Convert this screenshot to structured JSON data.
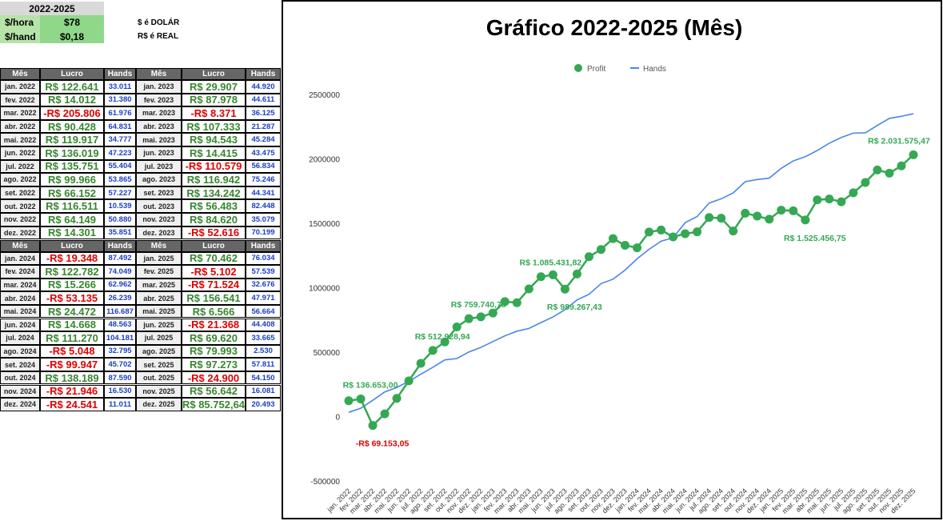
{
  "summary": {
    "title": "2022-2025",
    "rows": [
      [
        "$/hora",
        "$78"
      ],
      [
        "$/hand",
        "$0,18"
      ]
    ],
    "notes": [
      "$ é DOLÁR",
      "R$ é REAL"
    ]
  },
  "tables": [
    {
      "header": [
        "Mês",
        "Lucro",
        "Hands",
        "Mês",
        "Lucro",
        "Hands"
      ],
      "rows": [
        [
          "jan. 2022",
          "R$ 122.641",
          "33.011",
          "jan. 2023",
          "R$ 29.907",
          "44.920"
        ],
        [
          "fev. 2022",
          "R$ 14.012",
          "31.380",
          "fev. 2023",
          "R$ 87.978",
          "44.611"
        ],
        [
          "mar. 2022",
          "-R$ 205.806",
          "61.976",
          "mar. 2023",
          "-R$ 8.371",
          "36.125"
        ],
        [
          "abr. 2022",
          "R$ 90.428",
          "64.831",
          "abr. 2023",
          "R$ 107.333",
          "21.287"
        ],
        [
          "mai. 2022",
          "R$ 119.917",
          "34.777",
          "mai. 2023",
          "R$ 94.543",
          "45.284"
        ],
        [
          "jun. 2022",
          "R$ 136.019",
          "47.223",
          "jun. 2023",
          "R$ 14.415",
          "43.475"
        ],
        [
          "jul. 2022",
          "R$ 135.751",
          "55.404",
          "jul. 2023",
          "-R$ 110.579",
          "56.834"
        ],
        [
          "ago. 2022",
          "R$ 99.966",
          "53.865",
          "ago. 2023",
          "R$ 116.942",
          "75.246"
        ],
        [
          "set. 2022",
          "R$ 66.152",
          "57.227",
          "set. 2023",
          "R$ 134.242",
          "44.341"
        ],
        [
          "out. 2022",
          "R$ 116.511",
          "10.539",
          "out. 2023",
          "R$ 56.483",
          "82.448"
        ],
        [
          "nov. 2022",
          "R$ 64.149",
          "50.880",
          "nov. 2023",
          "R$ 84.620",
          "35.079"
        ],
        [
          "dez. 2022",
          "R$ 14.301",
          "35.851",
          "dez. 2023",
          "-R$ 52.616",
          "70.199"
        ]
      ]
    },
    {
      "header": [
        "Mês",
        "Lucro",
        "Hands",
        "Mês",
        "Lucro",
        "Hands"
      ],
      "rows": [
        [
          "jan. 2024",
          "-R$ 19.348",
          "87.492",
          "jan. 2025",
          "R$ 70.462",
          "76.034"
        ],
        [
          "fev. 2024",
          "R$ 122.782",
          "74.049",
          "fev. 2025",
          "-R$ 5.102",
          "57.539"
        ],
        [
          "mar. 2024",
          "R$ 15.266",
          "62.962",
          "mar. 2025",
          "-R$ 71.524",
          "32.676"
        ],
        [
          "abr. 2024",
          "-R$ 53.135",
          "26.239",
          "abr. 2025",
          "R$ 156.541",
          "47.971"
        ],
        [
          "mai. 2024",
          "R$ 24.472",
          "116.687",
          "mai. 2025",
          "R$ 6.566",
          "56.664"
        ],
        [
          "jun. 2024",
          "R$ 14.668",
          "48.563",
          "jun. 2025",
          "-R$ 21.368",
          "44.408"
        ],
        [
          "jul. 2024",
          "R$ 111.270",
          "104.181",
          "jul. 2025",
          "R$ 69.620",
          "33.665"
        ],
        [
          "ago. 2024",
          "-R$ 5.048",
          "32.795",
          "ago. 2025",
          "R$ 79.993",
          "2.530"
        ],
        [
          "set. 2024",
          "-R$ 99.947",
          "45.702",
          "set. 2025",
          "R$ 97.273",
          "57.811"
        ],
        [
          "out. 2024",
          "R$ 138.189",
          "87.590",
          "out. 2025",
          "-R$ 24.900",
          "54.150"
        ],
        [
          "nov. 2024",
          "-R$ 21.946",
          "16.530",
          "nov. 2025",
          "R$ 56.642",
          "16.081"
        ],
        [
          "dez. 2024",
          "-R$ 24.541",
          "11.011",
          "dez. 2025",
          "R$ 85.752,64",
          "20.493"
        ]
      ]
    }
  ],
  "chart_data": {
    "type": "line",
    "title": "Gráfico 2022-2025 (Mês)",
    "legend": "top",
    "grid": false,
    "categories": [
      "jan. 2022",
      "fev. 2022",
      "mar. 2022",
      "abr. 2022",
      "mai. 2022",
      "jun. 2022",
      "jul. 2022",
      "ago. 2022",
      "set. 2022",
      "out. 2022",
      "nov. 2022",
      "dez. 2022",
      "jan. 2023",
      "fev. 2023",
      "mar. 2023",
      "abr. 2023",
      "mai. 2023",
      "jun. 2023",
      "jul. 2023",
      "ago. 2023",
      "set. 2023",
      "out. 2023",
      "nov. 2023",
      "dez. 2023",
      "jan. 2024",
      "fev. 2024",
      "mar. 2024",
      "abr. 2024",
      "mai. 2024",
      "jun. 2024",
      "jul. 2024",
      "ago. 2024",
      "set. 2024",
      "out. 2024",
      "nov. 2024",
      "dez. 2024",
      "jan. 2025",
      "fev. 2025",
      "mar. 2025",
      "abr. 2025",
      "mai. 2025",
      "jun. 2025",
      "jul. 2025",
      "ago. 2025",
      "set. 2025",
      "out. 2025",
      "nov. 2025",
      "dez. 2025"
    ],
    "ylim": [
      -500000,
      2500000
    ],
    "yticks": [
      -500000,
      0,
      500000,
      1000000,
      1500000,
      2000000,
      2500000
    ],
    "series": [
      {
        "name": "Profit",
        "color": "#34a853",
        "markers": true,
        "values": [
          122641,
          136653.0,
          -69153.05,
          21275,
          141192,
          277211,
          412962,
          512928.94,
          579080,
          695591,
          759740.75,
          774041,
          803948,
          891926,
          883555,
          990888,
          1085431.82,
          1099846,
          989267.43,
          1106209,
          1240451,
          1296934,
          1381554,
          1328938,
          1309590,
          1432372,
          1447638,
          1394503,
          1418975,
          1433643,
          1544913,
          1539865,
          1439918,
          1578107,
          1556161,
          1531620,
          1602082,
          1596980,
          1525456.75,
          1681997,
          1688563,
          1667195,
          1736815,
          1816808,
          1914081,
          1889181,
          1945823,
          2031575.47
        ],
        "value_labels": [
          null,
          "R$ 136.653,00",
          "-R$ 69.153,05",
          null,
          null,
          null,
          null,
          "R$ 512.928,94",
          null,
          null,
          "R$ 759.740,75",
          null,
          null,
          null,
          null,
          null,
          "R$ 1.085.431,82",
          null,
          "R$ 989.267,43",
          null,
          null,
          null,
          null,
          null,
          null,
          null,
          null,
          null,
          null,
          null,
          null,
          null,
          null,
          null,
          null,
          null,
          null,
          null,
          "R$ 1.525.456,75",
          null,
          null,
          null,
          null,
          null,
          null,
          null,
          null,
          "R$ 2.031.575,47"
        ]
      },
      {
        "name": "Hands",
        "color": "#4a86e8",
        "markers": false,
        "values": [
          33011,
          64391,
          126367,
          191198,
          225975,
          273198,
          328602,
          382467,
          439694,
          450233,
          501113,
          536964,
          581884,
          626495,
          662620,
          683907,
          729191,
          772666,
          829500,
          904746,
          949087,
          1031535,
          1066614,
          1136813,
          1224305,
          1298354,
          1361316,
          1387555,
          1504242,
          1552805,
          1656986,
          1689781,
          1735483,
          1823073,
          1839603,
          1850614,
          1926648,
          1984187,
          2016863,
          2064834,
          2121498,
          2165906,
          2199571,
          2202101,
          2259912,
          2314062,
          2330143,
          2350636
        ]
      }
    ]
  }
}
